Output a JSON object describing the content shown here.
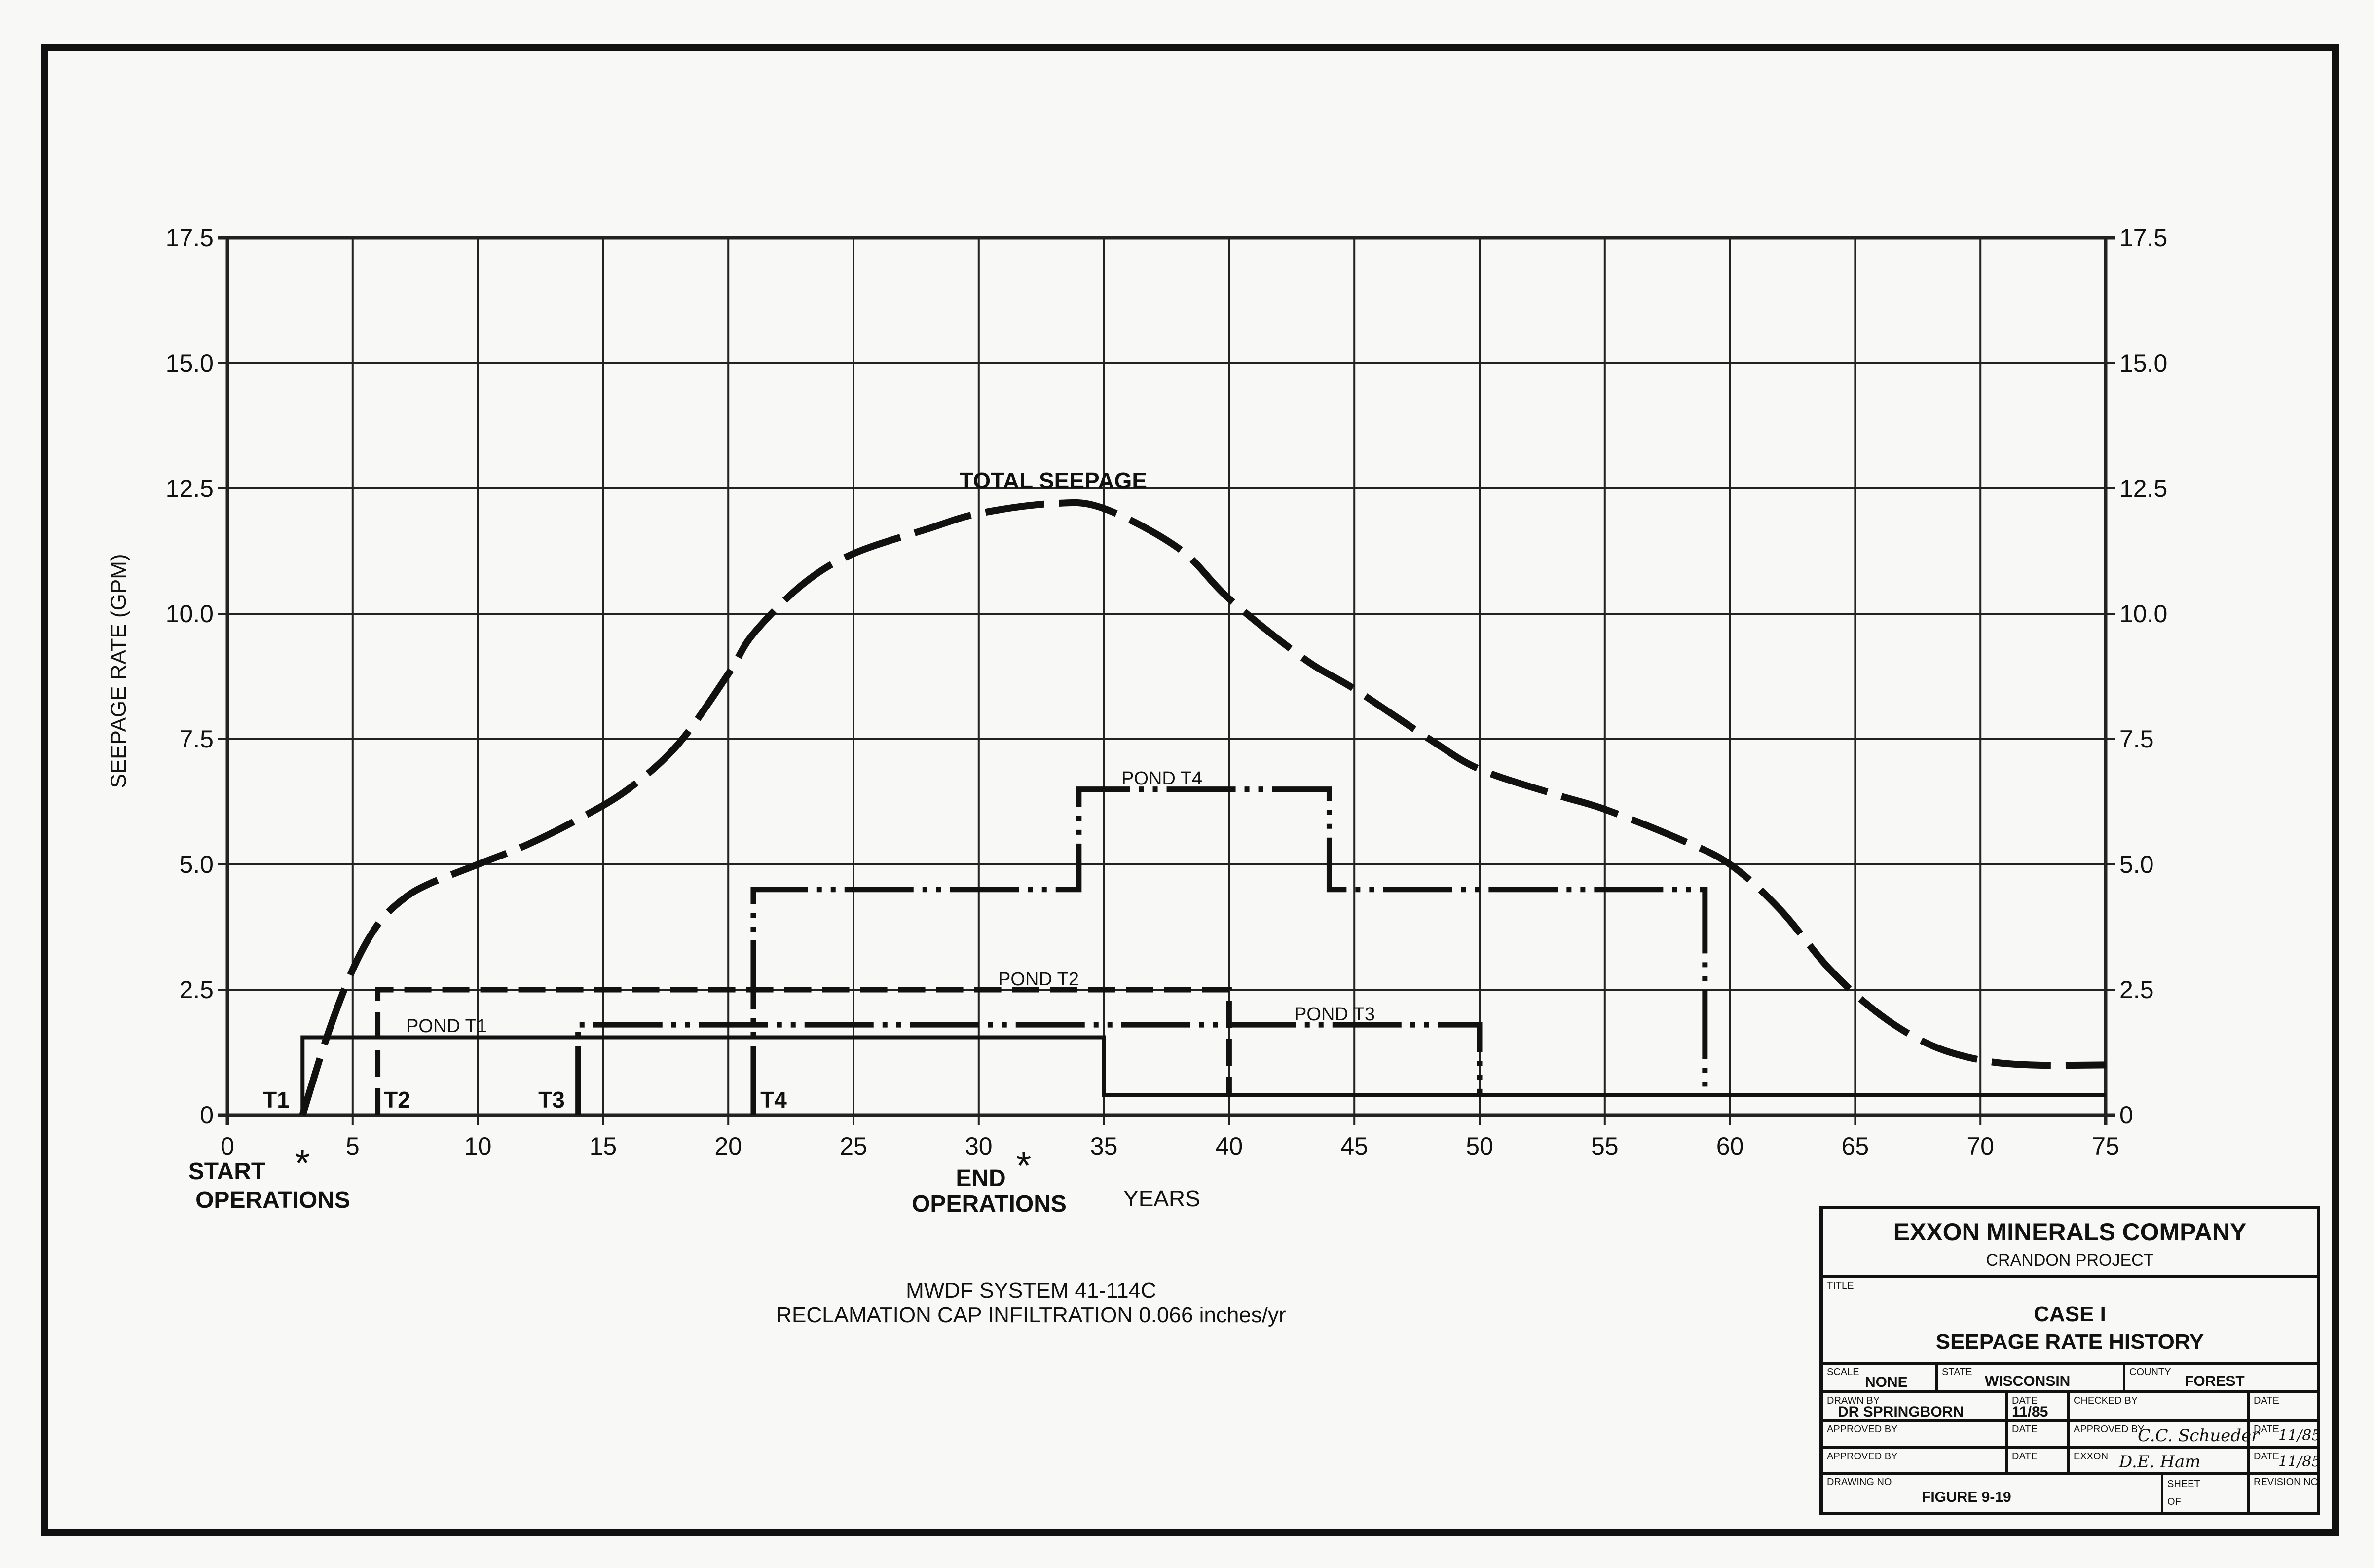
{
  "chart_data": {
    "type": "line",
    "title": "TOTAL SEEPAGE",
    "xlabel": "YEARS",
    "ylabel": "SEEPAGE RATE (GPM)",
    "xlim": [
      0,
      75
    ],
    "ylim": [
      0,
      17.5
    ],
    "grid": true,
    "x_ticks": [
      "0",
      "5",
      "10",
      "15",
      "20",
      "25",
      "30",
      "35",
      "40",
      "45",
      "50",
      "55",
      "60",
      "65",
      "70",
      "75"
    ],
    "y_ticks": [
      "0",
      "2.5",
      "5.0",
      "7.5",
      "10.0",
      "12.5",
      "15.0",
      "17.5"
    ],
    "series": [
      {
        "name": "TOTAL SEEPAGE",
        "style": "long-dash",
        "x": [
          3,
          4,
          5,
          6,
          7,
          8,
          10,
          12,
          14,
          16,
          18,
          20,
          21,
          23,
          25,
          28,
          30,
          33,
          35,
          38,
          40,
          43,
          45,
          48,
          50,
          53,
          55,
          58,
          60,
          62,
          64,
          66,
          68,
          70,
          72,
          75
        ],
        "y": [
          0,
          1.6,
          2.9,
          3.8,
          4.3,
          4.6,
          5.0,
          5.4,
          5.9,
          6.5,
          7.4,
          8.8,
          9.6,
          10.6,
          11.2,
          11.7,
          12.0,
          12.2,
          12.1,
          11.3,
          10.3,
          9.1,
          8.5,
          7.5,
          6.9,
          6.4,
          6.1,
          5.5,
          5.0,
          4.1,
          2.9,
          2.0,
          1.4,
          1.1,
          1.0,
          1.0
        ]
      },
      {
        "name": "POND T1",
        "style": "solid",
        "x": [
          3,
          3,
          35,
          35,
          75
        ],
        "y": [
          0,
          1.55,
          1.55,
          0.4,
          0.4
        ]
      },
      {
        "name": "POND T2",
        "style": "dash",
        "x": [
          6,
          6,
          40,
          40
        ],
        "y": [
          0,
          2.5,
          2.5,
          0.4
        ]
      },
      {
        "name": "POND T3",
        "style": "dash-dot",
        "x": [
          14,
          14,
          50,
          50
        ],
        "y": [
          0,
          1.8,
          1.8,
          0.4
        ]
      },
      {
        "name": "POND T4",
        "style": "dash-dot",
        "x": [
          21,
          21,
          34,
          34,
          44,
          44,
          59,
          59
        ],
        "y": [
          0,
          4.5,
          4.5,
          6.5,
          6.5,
          4.5,
          4.5,
          0.4
        ]
      }
    ],
    "annotations": {
      "total": "TOTAL SEEPAGE",
      "t1": "POND T1",
      "t2": "POND T2",
      "t3": "POND T3",
      "t4": "POND T4",
      "start_t1": "T1",
      "start_t2": "T2",
      "start_t3": "T3",
      "start_t4": "T4",
      "star": "*",
      "start_ops_1": "START",
      "start_ops_2": "OPERATIONS",
      "end_ops_1": "END",
      "end_ops_2": "OPERATIONS"
    },
    "start_operations_year": 3,
    "end_operations_year": 32
  },
  "caption": {
    "line1": "MWDF SYSTEM 41-114C",
    "line2": "RECLAMATION CAP INFILTRATION 0.066 inches/yr"
  },
  "title_block": {
    "company": "EXXON MINERALS COMPANY",
    "project": "CRANDON PROJECT",
    "title_label": "TITLE",
    "title1": "CASE I",
    "title2": "SEEPAGE RATE HISTORY",
    "scale_label": "SCALE",
    "scale": "NONE",
    "state_label": "STATE",
    "state": "WISCONSIN",
    "county_label": "COUNTY",
    "county": "FOREST",
    "drawn_label": "DRAWN BY",
    "drawn": "DR SPRINGBORN",
    "date_label": "DATE",
    "drawn_date": "11/85",
    "checked_label": "CHECKED BY",
    "approved_label": "APPROVED BY",
    "approved_sig": "C.C. Schueder",
    "approved_date": "11/85",
    "exxon_label": "EXXON",
    "exxon_sig": "D.E. Ham",
    "exxon_date": "11/85",
    "drawing_no_label": "DRAWING NO",
    "drawing_no": "FIGURE 9-19",
    "sheet_label": "SHEET",
    "of_label": "OF",
    "revision_label": "REVISION NO"
  }
}
